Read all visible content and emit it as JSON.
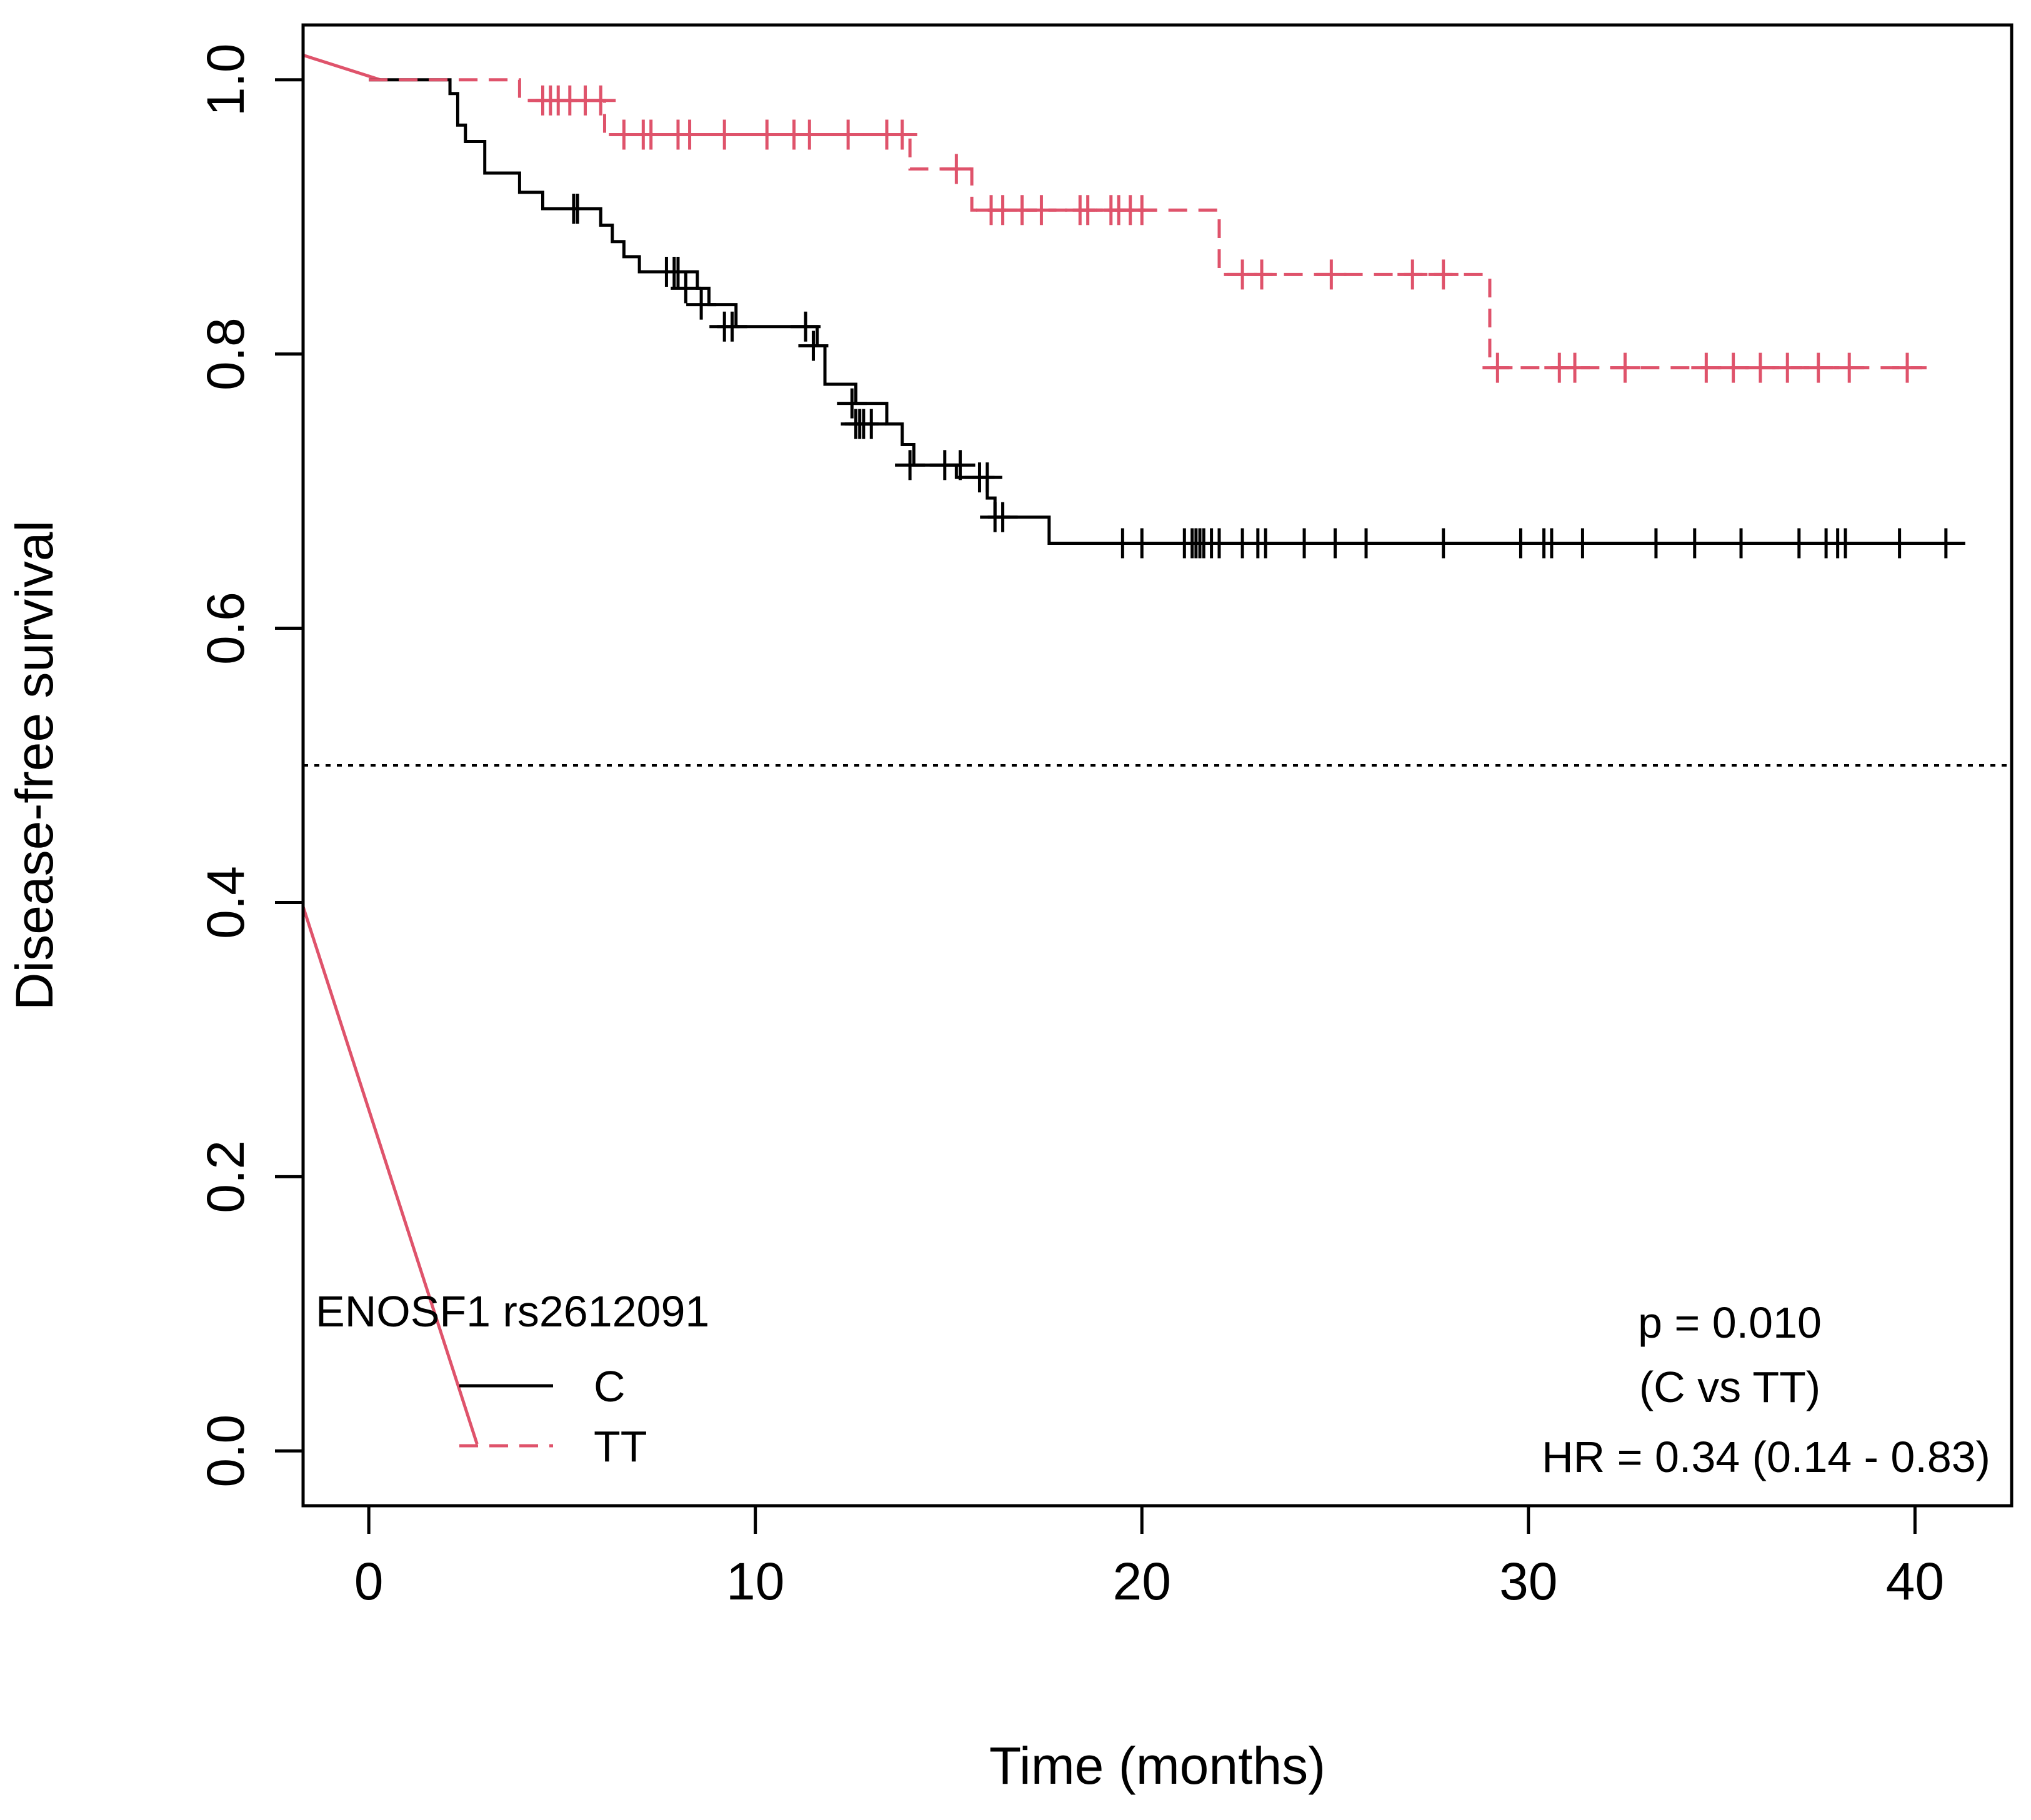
{
  "chart_data": {
    "type": "line",
    "title": "",
    "xlabel": "Time (months)",
    "ylabel": "Disease-free survival",
    "xlim": [
      -1.7,
      42.5
    ],
    "ylim": [
      -0.04,
      1.04
    ],
    "xticks": [
      0,
      10,
      20,
      30,
      40
    ],
    "yticks": [
      0.0,
      0.2,
      0.4,
      0.6,
      0.8,
      1.0
    ],
    "xtick_labels": [
      "0",
      "10",
      "20",
      "30",
      "40"
    ],
    "ytick_labels": [
      "0.0",
      "0.2",
      "0.4",
      "0.6",
      "0.8",
      "1.0"
    ],
    "grid": false,
    "reference_line": {
      "y": 0.5,
      "style": "dotted"
    },
    "series": [
      {
        "name": "C",
        "color": "#000000",
        "style": "solid",
        "steps": [
          [
            0,
            1.0
          ],
          [
            2.1,
            0.99
          ],
          [
            2.3,
            0.967
          ],
          [
            2.5,
            0.955
          ],
          [
            3.0,
            0.932
          ],
          [
            3.9,
            0.918
          ],
          [
            4.5,
            0.906
          ],
          [
            6.0,
            0.894
          ],
          [
            6.3,
            0.882
          ],
          [
            6.6,
            0.871
          ],
          [
            7.0,
            0.86
          ],
          [
            8.5,
            0.848
          ],
          [
            8.8,
            0.836
          ],
          [
            9.5,
            0.82
          ],
          [
            11.6,
            0.806
          ],
          [
            11.8,
            0.778
          ],
          [
            12.6,
            0.764
          ],
          [
            13.4,
            0.749
          ],
          [
            13.8,
            0.734
          ],
          [
            14.1,
            0.719
          ],
          [
            15.2,
            0.71
          ],
          [
            16.0,
            0.695
          ],
          [
            16.2,
            0.681
          ],
          [
            17.6,
            0.662
          ],
          [
            41.3,
            0.662
          ]
        ],
        "censor_times": [
          5.3,
          5.4,
          7.7,
          7.9,
          8.0,
          8.2,
          8.6,
          9.2,
          9.4,
          11.3,
          11.5,
          12.5,
          12.6,
          12.7,
          12.8,
          13.0,
          14.0,
          14.9,
          15.3,
          15.8,
          16.0,
          16.2,
          16.4,
          19.5,
          20.0,
          21.1,
          21.3,
          21.4,
          21.5,
          21.6,
          21.8,
          22.0,
          22.6,
          23.0,
          23.2,
          24.2,
          25.0,
          25.8,
          27.8,
          29.8,
          30.4,
          30.6,
          31.4,
          33.3,
          34.3,
          35.5,
          37.0,
          37.7,
          38.0,
          38.2,
          39.6,
          40.8
        ],
        "censor_y": [
          0.906,
          0.906,
          0.86,
          0.86,
          0.86,
          0.848,
          0.836,
          0.82,
          0.82,
          0.82,
          0.806,
          0.764,
          0.749,
          0.749,
          0.749,
          0.749,
          0.719,
          0.719,
          0.719,
          0.71,
          0.71,
          0.681,
          0.681,
          0.662,
          0.662,
          0.662,
          0.662,
          0.662,
          0.662,
          0.662,
          0.662,
          0.662,
          0.662,
          0.662,
          0.662,
          0.662,
          0.662,
          0.662,
          0.662,
          0.662,
          0.662,
          0.662,
          0.662,
          0.662,
          0.662,
          0.662,
          0.662,
          0.662,
          0.662,
          0.662,
          0.662,
          0.662
        ]
      },
      {
        "name": "TT",
        "color": "#df536b",
        "style": "dashed",
        "steps": [
          [
            0,
            1.0
          ],
          [
            3.9,
            0.985
          ],
          [
            6.1,
            0.96
          ],
          [
            14.0,
            0.935
          ],
          [
            15.6,
            0.905
          ],
          [
            22.0,
            0.858
          ],
          [
            29.0,
            0.79
          ],
          [
            40.3,
            0.79
          ]
        ],
        "censor_times": [
          4.5,
          4.7,
          4.9,
          5.2,
          5.6,
          6.0,
          6.6,
          7.1,
          7.3,
          8.0,
          8.3,
          9.2,
          10.3,
          11.0,
          11.4,
          12.4,
          13.4,
          13.8,
          15.2,
          16.1,
          16.4,
          16.9,
          17.4,
          18.4,
          18.6,
          19.2,
          19.4,
          19.7,
          20.0,
          22.6,
          23.1,
          24.9,
          27.0,
          27.8,
          29.2,
          30.8,
          31.2,
          32.5,
          34.6,
          35.3,
          36.0,
          36.7,
          37.5,
          38.3,
          39.8
        ],
        "censor_y": [
          0.985,
          0.985,
          0.985,
          0.985,
          0.985,
          0.985,
          0.96,
          0.96,
          0.96,
          0.96,
          0.96,
          0.96,
          0.96,
          0.96,
          0.96,
          0.96,
          0.96,
          0.96,
          0.935,
          0.905,
          0.905,
          0.905,
          0.905,
          0.905,
          0.905,
          0.905,
          0.905,
          0.905,
          0.905,
          0.858,
          0.858,
          0.858,
          0.858,
          0.858,
          0.79,
          0.79,
          0.79,
          0.79,
          0.79,
          0.79,
          0.79,
          0.79,
          0.79,
          0.79,
          0.79
        ]
      }
    ],
    "extra_lines": [
      {
        "color": "#df536b",
        "points": [
          [
            -1.7,
            1.018
          ],
          [
            0.3,
            1.0
          ]
        ]
      },
      {
        "color": "#df536b",
        "points": [
          [
            -1.7,
            0.397
          ],
          [
            2.8,
            0.005
          ]
        ]
      }
    ],
    "legend": {
      "title": "ENOSF1 rs2612091",
      "placement": "bottom-left",
      "entries": [
        {
          "label": "C",
          "color": "#000000",
          "style": "solid"
        },
        {
          "label": "TT",
          "color": "#df536b",
          "style": "dashed"
        }
      ]
    },
    "annotations": {
      "p_value": "p = 0.010",
      "comparison": "(C vs TT)",
      "hazard_ratio": "HR = 0.34 (0.14 - 0.83)",
      "placement": "bottom-right"
    }
  }
}
